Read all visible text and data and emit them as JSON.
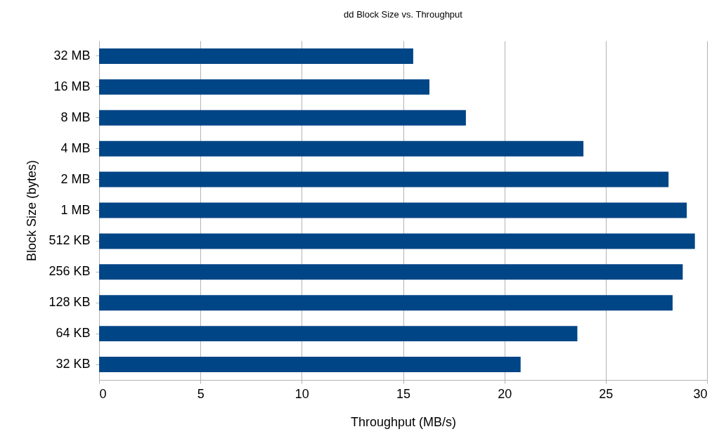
{
  "chart_data": {
    "type": "bar",
    "orientation": "horizontal",
    "title": "dd Block Size vs. Throughput",
    "xlabel": "Throughput (MB/s)",
    "ylabel": "Block Size (bytes)",
    "categories": [
      "32 MB",
      "16 MB",
      "8 MB",
      "4 MB",
      "2 MB",
      "1 MB",
      "512 KB",
      "256 KB",
      "128 KB",
      "64 KB",
      "32 KB"
    ],
    "values": [
      15.5,
      16.3,
      18.1,
      23.9,
      28.1,
      29.0,
      29.4,
      28.8,
      28.3,
      23.6,
      20.8
    ],
    "color": "#004586",
    "xlim": [
      0,
      30
    ],
    "xticks": [
      0,
      5,
      10,
      15,
      20,
      25,
      30
    ],
    "grid": "x"
  }
}
